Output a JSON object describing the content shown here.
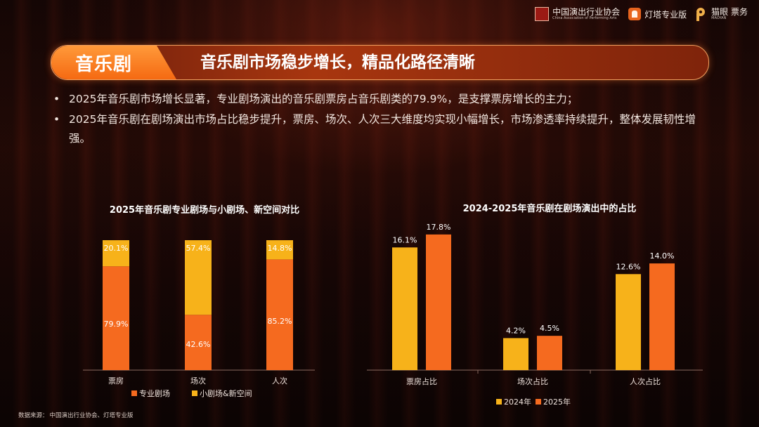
{
  "header": {
    "logos": [
      {
        "icon": "association-seal-icon",
        "text": "中国演出行业协会",
        "subtext": "China Association of Performing Arts"
      },
      {
        "icon": "dengta-icon",
        "text": "灯塔专业版"
      },
      {
        "icon": "maoyan-icon",
        "text": "猫眼 票务",
        "subtext": "MAOYAN"
      }
    ]
  },
  "title": {
    "tag": "音乐剧",
    "text": "音乐剧市场稳步增长，精品化路径清晰"
  },
  "bullets": [
    "2025年音乐剧市场增长显著，专业剧场演出的音乐剧票房占音乐剧类的79.9%，是支撑票房增长的主力；",
    "2025年音乐剧在剧场演出市场占比稳步提升，票房、场次、人次三大维度均实现小幅增长，市场渗透率持续提升，整体发展韧性增强。"
  ],
  "source": {
    "label": "数据来源：",
    "text": "中国演出行业协会、灯塔专业版"
  },
  "colors": {
    "orange": "#f56a1f",
    "yellow": "#f7b21a",
    "axis": "#8a6a60"
  },
  "chart_data": [
    {
      "type": "bar",
      "stacked": true,
      "title": "2025年音乐剧专业剧场与小剧场、新空间对比",
      "categories": [
        "票房",
        "场次",
        "人次"
      ],
      "series": [
        {
          "name": "专业剧场",
          "values": [
            79.9,
            42.6,
            85.2
          ],
          "labels": [
            "79.9%",
            "42.6%",
            "85.2%"
          ],
          "color": "#f56a1f"
        },
        {
          "name": "小剧场&新空间",
          "values": [
            20.1,
            57.4,
            14.8
          ],
          "labels": [
            "20.1%",
            "57.4%",
            "14.8%"
          ],
          "color": "#f7b21a"
        }
      ],
      "ylim": [
        0,
        100
      ],
      "unit": "%",
      "legend": "bottom"
    },
    {
      "type": "bar",
      "title": "2024-2025年音乐剧在剧场演出中的占比",
      "categories": [
        "票房占比",
        "场次占比",
        "人次占比"
      ],
      "series": [
        {
          "name": "2024年",
          "values": [
            16.1,
            4.2,
            12.6
          ],
          "labels": [
            "16.1%",
            "4.2%",
            "12.6%"
          ],
          "color": "#f7b21a"
        },
        {
          "name": "2025年",
          "values": [
            17.8,
            4.5,
            14.0
          ],
          "labels": [
            "17.8%",
            "4.5%",
            "14.0%"
          ],
          "color": "#f56a1f"
        }
      ],
      "ylim": [
        0,
        20
      ],
      "unit": "%",
      "legend": "bottom"
    }
  ]
}
